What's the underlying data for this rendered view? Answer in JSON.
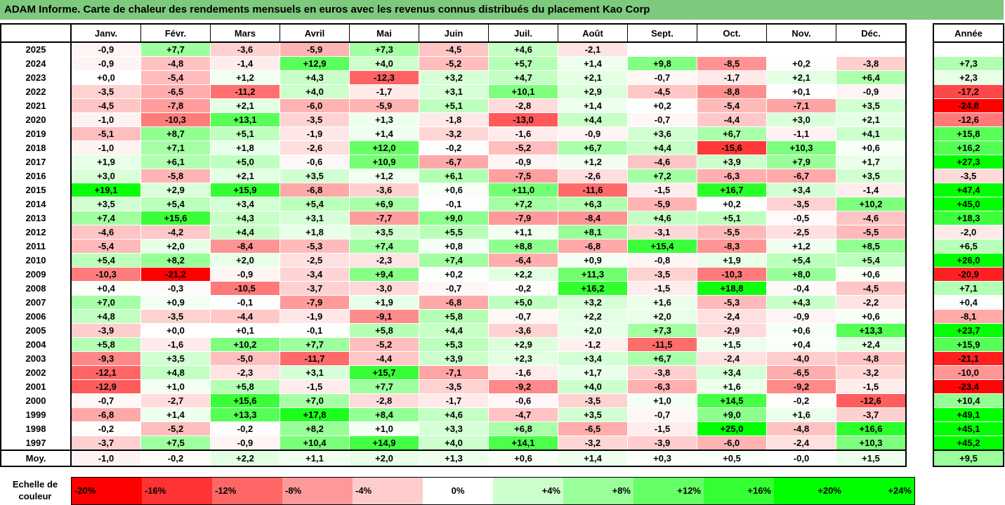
{
  "title": "ADAM Informe. Carte de chaleur des rendements mensuels en euros avec les revenus connus distribués du placement Kao Corp",
  "chart_data": {
    "type": "heatmap",
    "months": [
      "Janv.",
      "Févr.",
      "Mars",
      "Avril",
      "Mai",
      "Juin",
      "Juil.",
      "Août",
      "Sept.",
      "Oct.",
      "Nov.",
      "Déc."
    ],
    "annual_header": "Année",
    "rows": [
      {
        "year": "2025",
        "values": [
          "-0,9",
          "+7,7",
          "-3,6",
          "-5,9",
          "+7,3",
          "-4,5",
          "+4,6",
          "-2,1",
          "",
          "",
          "",
          ""
        ],
        "annual": ""
      },
      {
        "year": "2024",
        "values": [
          "-0,9",
          "-4,8",
          "-1,4",
          "+12,9",
          "+4,0",
          "-5,2",
          "+5,7",
          "+1,4",
          "+9,8",
          "-8,5",
          "+0,2",
          "-3,8"
        ],
        "annual": "+7,3"
      },
      {
        "year": "2023",
        "values": [
          "+0,0",
          "-5,4",
          "+1,2",
          "+4,3",
          "-12,3",
          "+3,2",
          "+4,7",
          "+2,1",
          "-0,7",
          "-1,7",
          "+2,1",
          "+6,4"
        ],
        "annual": "+2,3"
      },
      {
        "year": "2022",
        "values": [
          "-3,5",
          "-6,5",
          "-11,2",
          "+4,0",
          "-1,7",
          "+3,1",
          "+10,1",
          "+2,9",
          "-4,5",
          "-8,8",
          "+0,1",
          "-0,9"
        ],
        "annual": "-17,2"
      },
      {
        "year": "2021",
        "values": [
          "-4,5",
          "-7,8",
          "+2,1",
          "-6,0",
          "-5,9",
          "+5,1",
          "-2,8",
          "+1,4",
          "+0,2",
          "-5,4",
          "-7,1",
          "+3,5"
        ],
        "annual": "-24,8"
      },
      {
        "year": "2020",
        "values": [
          "-1,0",
          "-10,3",
          "+13,1",
          "-3,5",
          "+1,3",
          "-1,8",
          "-13,0",
          "+4,4",
          "-0,7",
          "-4,4",
          "+3,0",
          "+2,1"
        ],
        "annual": "-12,6"
      },
      {
        "year": "2019",
        "values": [
          "-5,1",
          "+8,7",
          "+5,1",
          "-1,9",
          "+1,4",
          "-3,2",
          "-1,6",
          "-0,9",
          "+3,6",
          "+6,7",
          "-1,1",
          "+4,1"
        ],
        "annual": "+15,8"
      },
      {
        "year": "2018",
        "values": [
          "-1,0",
          "+7,1",
          "+1,8",
          "-2,6",
          "+12,0",
          "-0,2",
          "-5,2",
          "+6,7",
          "+4,4",
          "-15,6",
          "+10,3",
          "+0,6"
        ],
        "annual": "+16,2"
      },
      {
        "year": "2017",
        "values": [
          "+1,9",
          "+6,1",
          "+5,0",
          "-0,6",
          "+10,9",
          "-6,7",
          "-0,9",
          "+1,2",
          "-4,6",
          "+3,9",
          "+7,9",
          "+1,7"
        ],
        "annual": "+27,3"
      },
      {
        "year": "2016",
        "values": [
          "+3,0",
          "-5,8",
          "+2,1",
          "+3,5",
          "+1,2",
          "+6,1",
          "-7,5",
          "-2,6",
          "+7,2",
          "-6,3",
          "-6,7",
          "+3,5"
        ],
        "annual": "-3,5"
      },
      {
        "year": "2015",
        "values": [
          "+19,1",
          "+2,9",
          "+15,9",
          "-6,8",
          "-3,6",
          "+0,6",
          "+11,0",
          "-11,6",
          "-1,5",
          "+16,7",
          "+3,4",
          "-1,4"
        ],
        "annual": "+47,4"
      },
      {
        "year": "2014",
        "values": [
          "+3,5",
          "+5,4",
          "+3,4",
          "+5,4",
          "+6,9",
          "-0,1",
          "+7,2",
          "+6,3",
          "-5,9",
          "+0,2",
          "-3,5",
          "+10,2"
        ],
        "annual": "+45,0"
      },
      {
        "year": "2013",
        "values": [
          "+7,4",
          "+15,6",
          "+4,3",
          "+3,1",
          "-7,7",
          "+9,0",
          "-7,9",
          "-8,4",
          "+4,6",
          "+5,1",
          "-0,5",
          "-4,6"
        ],
        "annual": "+18,3"
      },
      {
        "year": "2012",
        "values": [
          "-4,6",
          "-4,2",
          "+4,4",
          "+1,8",
          "+3,5",
          "+5,5",
          "+1,1",
          "+8,1",
          "-3,1",
          "-5,5",
          "-2,5",
          "-5,5"
        ],
        "annual": "-2,0"
      },
      {
        "year": "2011",
        "values": [
          "-5,4",
          "+2,0",
          "-8,4",
          "-5,3",
          "+7,4",
          "+0,8",
          "+8,8",
          "-6,8",
          "+15,4",
          "-8,3",
          "+1,2",
          "+8,5"
        ],
        "annual": "+6,5"
      },
      {
        "year": "2010",
        "values": [
          "+5,4",
          "+8,2",
          "+2,0",
          "-2,5",
          "-2,3",
          "+7,4",
          "-6,4",
          "+0,9",
          "-0,8",
          "+1,9",
          "+5,4",
          "+5,4"
        ],
        "annual": "+26,0"
      },
      {
        "year": "2009",
        "values": [
          "-10,3",
          "-21,2",
          "-0,9",
          "-3,4",
          "+9,4",
          "+0,2",
          "+2,2",
          "+11,3",
          "-3,5",
          "-10,3",
          "+8,0",
          "+0,6"
        ],
        "annual": "-20,9"
      },
      {
        "year": "2008",
        "values": [
          "+0,4",
          "-0,3",
          "-10,5",
          "-3,7",
          "-3,0",
          "-0,7",
          "-0,2",
          "+16,2",
          "-1,5",
          "+18,8",
          "-0,4",
          "-4,5"
        ],
        "annual": "+7,1"
      },
      {
        "year": "2007",
        "values": [
          "+7,0",
          "+0,9",
          "-0,1",
          "-7,9",
          "+1,9",
          "-6,8",
          "+5,0",
          "+3,2",
          "+1,6",
          "-5,3",
          "+4,3",
          "-2,2"
        ],
        "annual": "+0,4"
      },
      {
        "year": "2006",
        "values": [
          "+4,8",
          "-3,5",
          "-4,4",
          "-1,9",
          "-9,1",
          "+5,8",
          "-0,7",
          "+2,2",
          "+2,0",
          "-2,4",
          "-0,9",
          "+0,6"
        ],
        "annual": "-8,1"
      },
      {
        "year": "2005",
        "values": [
          "-3,9",
          "+0,0",
          "+0,1",
          "-0,1",
          "+5,8",
          "+4,4",
          "-3,6",
          "+2,0",
          "+7,3",
          "-2,9",
          "+0,6",
          "+13,3"
        ],
        "annual": "+23,7"
      },
      {
        "year": "2004",
        "values": [
          "+5,8",
          "-1,6",
          "+10,2",
          "+7,7",
          "-5,2",
          "+5,3",
          "+2,9",
          "-1,2",
          "-11,5",
          "+1,5",
          "+0,4",
          "+2,4"
        ],
        "annual": "+15,9"
      },
      {
        "year": "2003",
        "values": [
          "-9,3",
          "+3,5",
          "-5,0",
          "-11,7",
          "-4,4",
          "+3,9",
          "+2,3",
          "+3,4",
          "+6,7",
          "-2,4",
          "-4,0",
          "-4,8"
        ],
        "annual": "-21,1"
      },
      {
        "year": "2002",
        "values": [
          "-12,1",
          "+4,8",
          "-2,3",
          "+3,1",
          "+15,7",
          "-7,1",
          "-1,6",
          "+1,7",
          "-3,8",
          "+3,4",
          "-6,5",
          "-3,2"
        ],
        "annual": "-10,0"
      },
      {
        "year": "2001",
        "values": [
          "-12,9",
          "+1,0",
          "+5,8",
          "-1,5",
          "+7,7",
          "-3,5",
          "-9,2",
          "+4,0",
          "-6,3",
          "+1,6",
          "-9,2",
          "-1,5"
        ],
        "annual": "-23,4"
      },
      {
        "year": "2000",
        "values": [
          "-0,7",
          "-2,7",
          "+15,6",
          "+7,0",
          "-2,8",
          "-1,7",
          "-0,6",
          "-3,5",
          "+1,0",
          "+14,5",
          "-0,2",
          "-12,6"
        ],
        "annual": "+10,4"
      },
      {
        "year": "1999",
        "values": [
          "-6,8",
          "+1,4",
          "+13,3",
          "+17,8",
          "+8,4",
          "+4,6",
          "-4,7",
          "+3,5",
          "-0,7",
          "+9,0",
          "+1,6",
          "-3,7"
        ],
        "annual": "+49,1"
      },
      {
        "year": "1998",
        "values": [
          "-0,2",
          "-5,2",
          "-0,2",
          "+8,2",
          "+1,0",
          "+3,3",
          "+6,8",
          "-6,5",
          "-1,5",
          "+25,0",
          "-4,8",
          "+16,6"
        ],
        "annual": "+45,1"
      },
      {
        "year": "1997",
        "values": [
          "-3,7",
          "+7,5",
          "-0,9",
          "+10,4",
          "+14,9",
          "+4,0",
          "+14,1",
          "-3,2",
          "-3,9",
          "-6,0",
          "-2,4",
          "+10,3"
        ],
        "annual": "+45,2"
      }
    ],
    "average": {
      "label": "Moy.",
      "values": [
        "-1,0",
        "-0,2",
        "+2,2",
        "+1,1",
        "+2,0",
        "+1,3",
        "+0,6",
        "+1,4",
        "+0,3",
        "+0,5",
        "-0,0",
        "+1,5"
      ],
      "annual": "+9,5"
    },
    "scale": {
      "label": "Echelle de couleur",
      "steps": [
        "-20%",
        "-16%",
        "-12%",
        "-8%",
        "-4%",
        "0%",
        "+4%",
        "+8%",
        "+12%",
        "+16%",
        "+20%",
        "+24%"
      ],
      "colors": [
        "#ff0000",
        "#ff3333",
        "#ff6666",
        "#ff9999",
        "#ffcccc",
        "#ffffff",
        "#ccffcc",
        "#99ff99",
        "#66ff66",
        "#33ff33",
        "#00ff00",
        "#00ff00"
      ]
    }
  }
}
